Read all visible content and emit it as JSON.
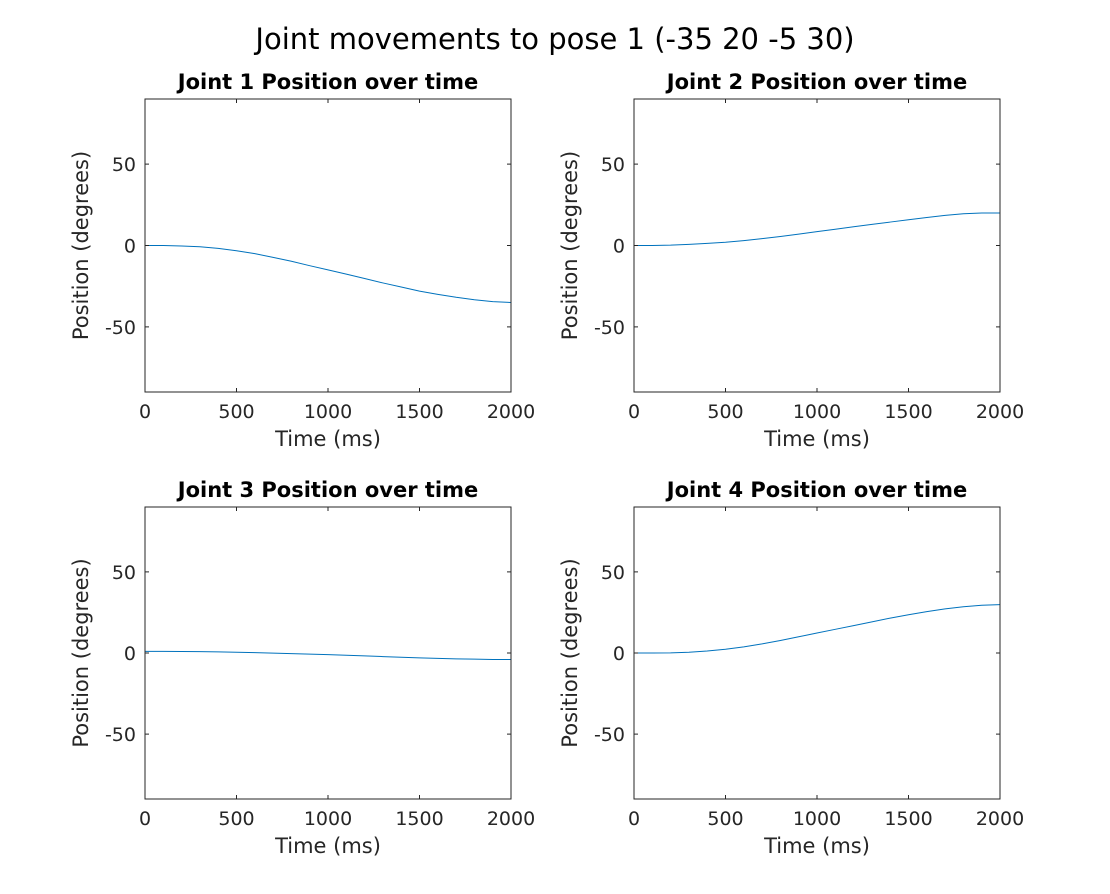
{
  "figure": {
    "suptitle": "Joint movements to pose 1 (-35 20 -5 30)"
  },
  "colors": {
    "background": "#ffffff",
    "axes": "#262626",
    "tick_text": "#262626",
    "title_text": "#000000",
    "line": "#0072bd"
  },
  "chart_data": [
    {
      "type": "line",
      "title": "Joint 1 Position over time",
      "xlabel": "Time (ms)",
      "ylabel": "Position (degrees)",
      "xlim": [
        0,
        2000
      ],
      "ylim": [
        -90,
        90
      ],
      "xticks": [
        0,
        500,
        1000,
        1500,
        2000
      ],
      "yticks": [
        -50,
        0,
        50
      ],
      "grid": false,
      "series": [
        {
          "x": [
            0,
            100,
            200,
            300,
            400,
            500,
            600,
            700,
            800,
            900,
            1000,
            1100,
            1200,
            1300,
            1400,
            1500,
            1600,
            1700,
            1800,
            1900,
            2000
          ],
          "values": [
            0,
            0,
            -0.3,
            -0.8,
            -1.8,
            -3.2,
            -5.0,
            -7.3,
            -9.7,
            -12.4,
            -15.0,
            -17.6,
            -20.3,
            -23.0,
            -25.5,
            -28.0,
            -30.0,
            -31.8,
            -33.3,
            -34.5,
            -35.0
          ]
        }
      ]
    },
    {
      "type": "line",
      "title": "Joint 2 Position over time",
      "xlabel": "Time (ms)",
      "ylabel": "Position (degrees)",
      "xlim": [
        0,
        2000
      ],
      "ylim": [
        -90,
        90
      ],
      "xticks": [
        0,
        500,
        1000,
        1500,
        2000
      ],
      "yticks": [
        -50,
        0,
        50
      ],
      "grid": false,
      "series": [
        {
          "x": [
            0,
            100,
            200,
            300,
            400,
            500,
            600,
            700,
            800,
            900,
            1000,
            1100,
            1200,
            1300,
            1400,
            1500,
            1600,
            1700,
            1800,
            1900,
            2000
          ],
          "values": [
            0,
            0,
            0.2,
            0.7,
            1.3,
            2.0,
            3.0,
            4.2,
            5.5,
            7.0,
            8.5,
            10.0,
            11.5,
            13.0,
            14.4,
            15.8,
            17.2,
            18.5,
            19.5,
            20.0,
            20.0
          ]
        }
      ]
    },
    {
      "type": "line",
      "title": "Joint 3 Position over time",
      "xlabel": "Time (ms)",
      "ylabel": "Position (degrees)",
      "xlim": [
        0,
        2000
      ],
      "ylim": [
        -90,
        90
      ],
      "xticks": [
        0,
        500,
        1000,
        1500,
        2000
      ],
      "yticks": [
        -50,
        0,
        50
      ],
      "grid": false,
      "series": [
        {
          "x": [
            0,
            100,
            200,
            300,
            400,
            500,
            600,
            700,
            800,
            900,
            1000,
            1100,
            1200,
            1300,
            1400,
            1500,
            1600,
            1700,
            1800,
            1900,
            2000
          ],
          "values": [
            1.0,
            1.0,
            0.95,
            0.85,
            0.7,
            0.5,
            0.2,
            -0.1,
            -0.4,
            -0.7,
            -1.0,
            -1.4,
            -1.8,
            -2.2,
            -2.6,
            -3.0,
            -3.3,
            -3.6,
            -3.8,
            -4.0,
            -4.0
          ]
        }
      ]
    },
    {
      "type": "line",
      "title": "Joint 4 Position over time",
      "xlabel": "Time (ms)",
      "ylabel": "Position (degrees)",
      "xlim": [
        0,
        2000
      ],
      "ylim": [
        -90,
        90
      ],
      "xticks": [
        0,
        500,
        1000,
        1500,
        2000
      ],
      "yticks": [
        -50,
        0,
        50
      ],
      "grid": false,
      "series": [
        {
          "x": [
            0,
            100,
            200,
            300,
            400,
            500,
            600,
            700,
            800,
            900,
            1000,
            1100,
            1200,
            1300,
            1400,
            1500,
            1600,
            1700,
            1800,
            1900,
            2000
          ],
          "values": [
            0,
            0,
            0.1,
            0.5,
            1.2,
            2.3,
            3.8,
            5.6,
            7.7,
            10.0,
            12.3,
            14.6,
            16.9,
            19.2,
            21.5,
            23.6,
            25.5,
            27.2,
            28.5,
            29.4,
            29.8
          ]
        }
      ]
    }
  ]
}
